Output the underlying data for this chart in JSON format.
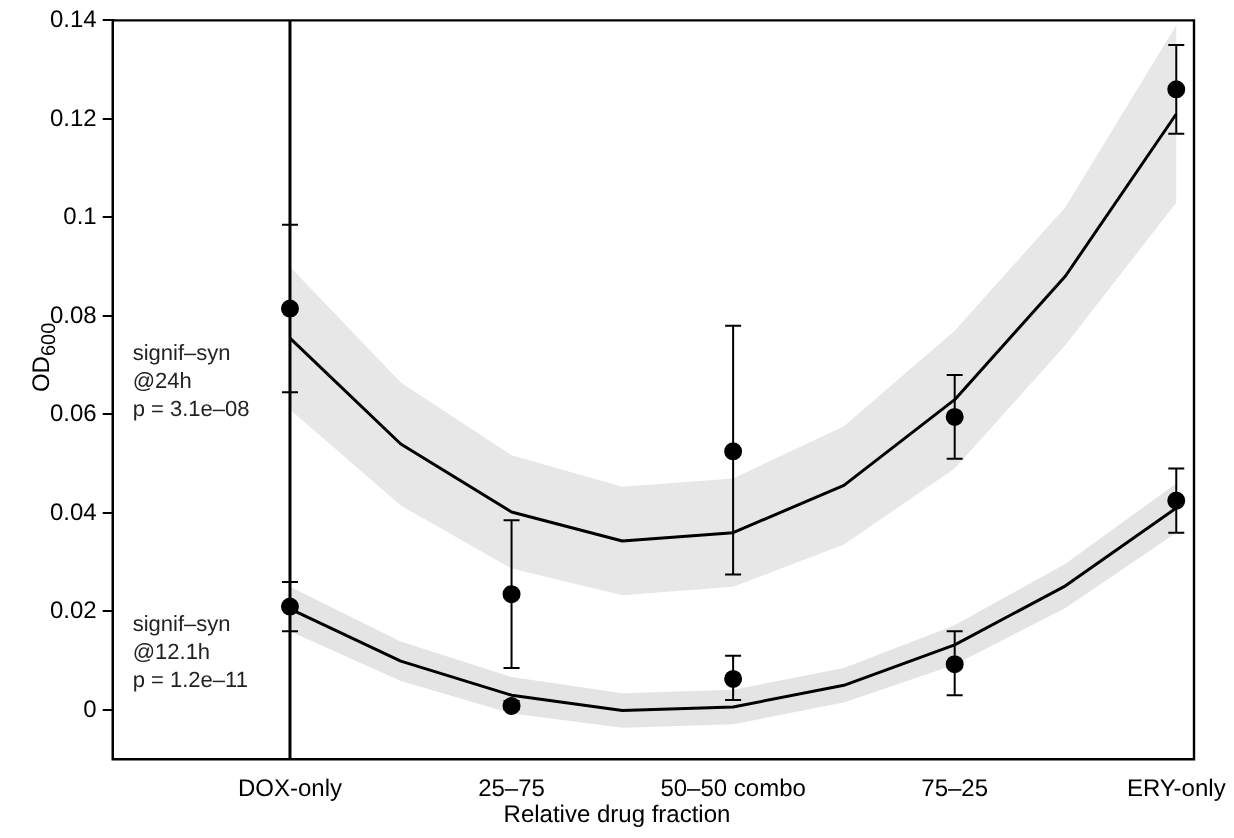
{
  "chart_data": {
    "type": "scatter",
    "xlabel": "Relative drug fraction",
    "ylabel": "OD$_{600}$",
    "categories": [
      "DOX-only",
      null,
      "25–75",
      null,
      "50–50 combo",
      null,
      "75–25",
      null,
      "ERY-only"
    ],
    "ylim": [
      -0.01,
      0.14
    ],
    "yticks": [
      0,
      0.02,
      0.04,
      0.06,
      0.08,
      0.1,
      0.12,
      0.14
    ],
    "grid": false,
    "legend": false,
    "marker": "circle",
    "ref_lines": [
      {
        "axis": "x",
        "value": "DOX-only",
        "color": "#000000"
      }
    ],
    "annotations": [
      "signif–syn\n@24h\np = 3.1e–08",
      "signif–syn\n@12.1h\np = 1.2e–11"
    ],
    "series": [
      {
        "type": "line",
        "color": "#000000",
        "marker": "none",
        "values": [
          0.0755,
          0.054,
          0.0402,
          0.0343,
          0.036,
          0.0456,
          0.063,
          0.0881,
          0.121
        ],
        "lower": [
          0.061,
          0.0415,
          0.0287,
          0.0233,
          0.025,
          0.0336,
          0.049,
          0.0741,
          0.103
        ],
        "upper": [
          0.09,
          0.0665,
          0.0517,
          0.0453,
          0.047,
          0.0576,
          0.077,
          0.1021,
          0.139
        ]
      },
      {
        "type": "line",
        "color": "#000000",
        "marker": "none",
        "values": [
          0.0205,
          0.0099,
          0.003,
          -0.0001,
          0.0006,
          0.005,
          0.0132,
          0.0252,
          0.041
        ],
        "lower": [
          0.016,
          0.0059,
          -0.0007,
          -0.0036,
          -0.0029,
          0.0015,
          0.0092,
          0.0207,
          0.036
        ],
        "upper": [
          0.025,
          0.0139,
          0.0067,
          0.0034,
          0.0041,
          0.0085,
          0.0172,
          0.0297,
          0.046
        ]
      },
      {
        "color": "#000000",
        "values": [
          0.0815,
          null,
          0.0235,
          null,
          0.0525,
          null,
          0.0595,
          null,
          0.126
        ],
        "errors": [
          [
            0.0645,
            0.0985
          ],
          null,
          [
            0.0085,
            0.0385
          ],
          null,
          [
            0.0275,
            0.078
          ],
          null,
          [
            0.051,
            0.068
          ],
          null,
          [
            0.117,
            0.135
          ]
        ]
      },
      {
        "color": "#000000",
        "values": [
          0.021,
          null,
          0.0008,
          null,
          0.0063,
          null,
          0.0093,
          null,
          0.0425
        ],
        "errors": [
          [
            0.016,
            0.026
          ],
          null,
          [
            0.0001,
            0.0018
          ],
          null,
          [
            0.002,
            0.011
          ],
          null,
          [
            0.003,
            0.016
          ],
          null,
          [
            0.036,
            0.049
          ]
        ]
      }
    ]
  }
}
